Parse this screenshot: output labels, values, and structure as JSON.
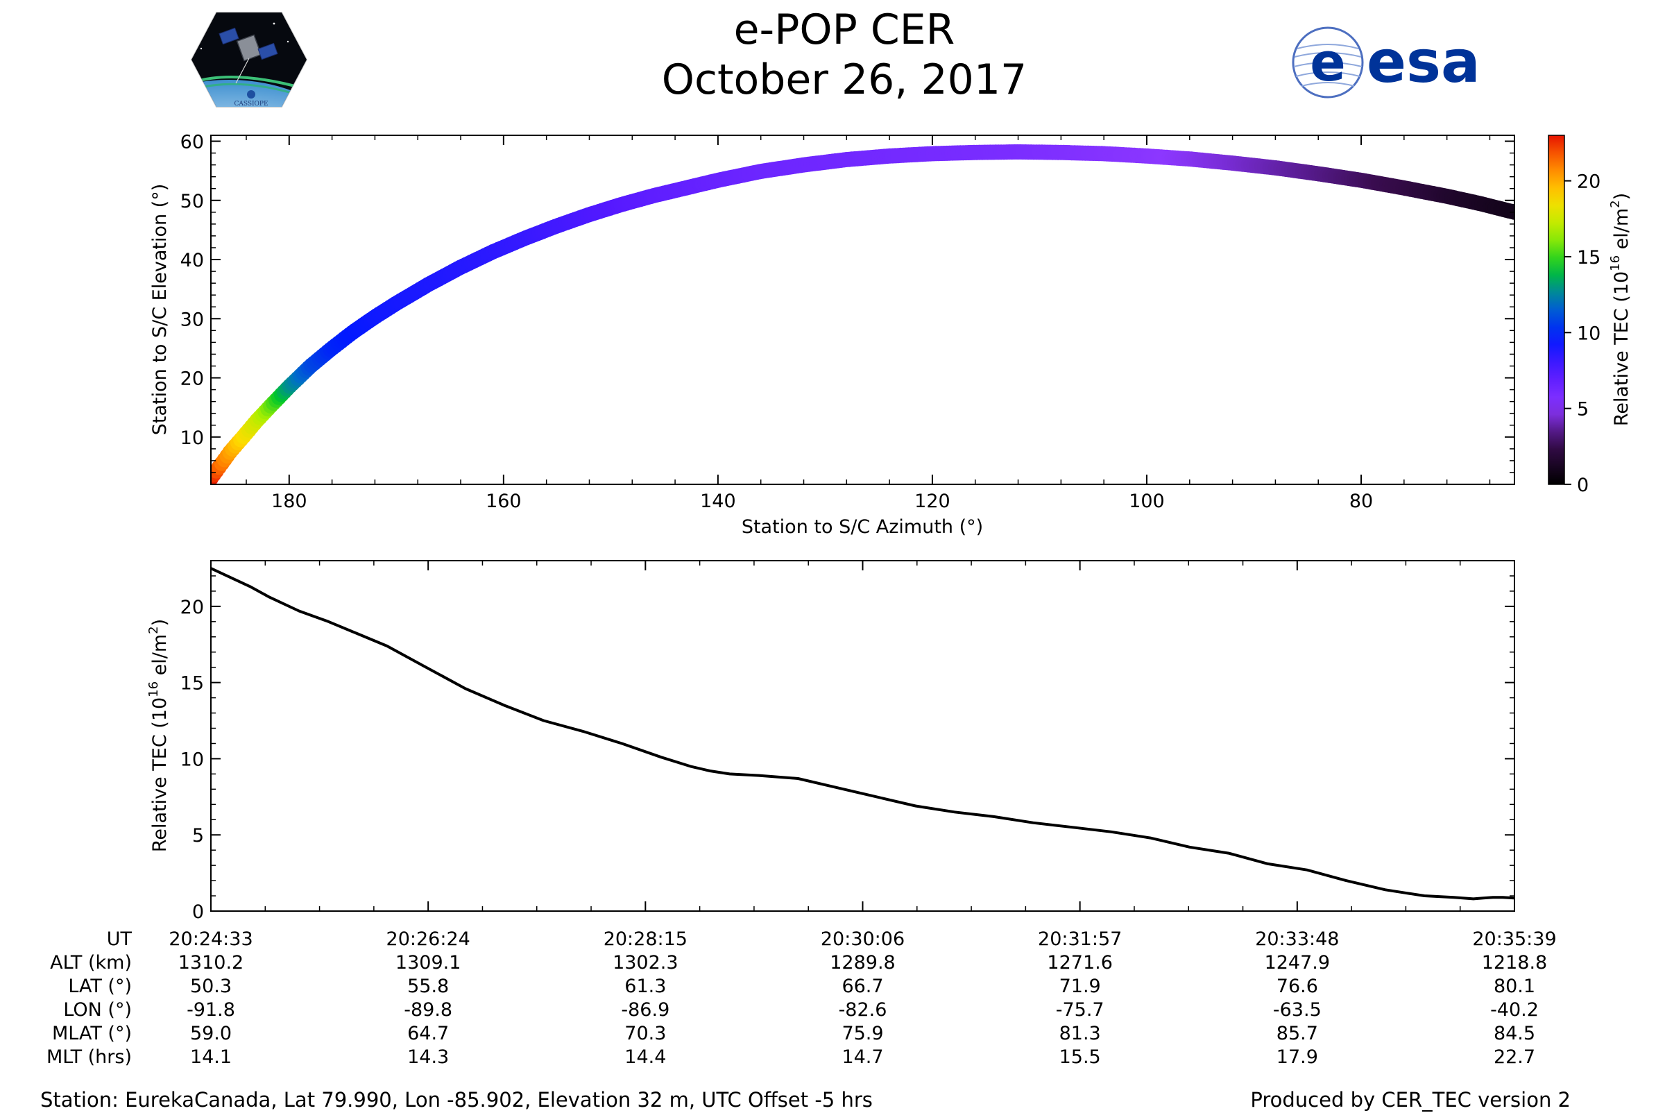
{
  "title": "e-POP CER",
  "date": "October 26, 2017",
  "logos": {
    "left": {
      "icon": "cassiope-mission-logo",
      "text": "CASSIOPE"
    },
    "right": {
      "icon": "esa-logo",
      "text": "esa",
      "color": "#003399"
    }
  },
  "chart_data": [
    {
      "type": "scatter",
      "title": "",
      "xlabel": "Station to S/C Azimuth (°)",
      "ylabel": "Station to S/C Elevation (°)",
      "xlim": [
        187.3,
        65.7
      ],
      "ylim": [
        2,
        61
      ],
      "x_reversed": true,
      "x_ticks": [
        180,
        160,
        140,
        120,
        100,
        80
      ],
      "y_ticks": [
        10,
        20,
        30,
        40,
        50,
        60
      ],
      "colorbar": {
        "label_main": "Relative TEC (10",
        "label_sup": "16",
        "label_mid": " el/m",
        "label_sup2": "2",
        "label_end": ")",
        "colormap": "gnuplot-rainbow-black-to-red",
        "range": [
          0,
          23
        ],
        "ticks": [
          0,
          5,
          10,
          15,
          20
        ]
      },
      "series": [
        {
          "x": [
            187.3,
            186.5,
            185.5,
            184.3,
            183.0,
            181.6,
            180.0,
            178.0,
            176.0,
            174.0,
            172.0,
            170.0,
            167.0,
            164.0,
            161.0,
            158.0,
            155.0,
            152.0,
            149.0,
            146.0,
            143.0,
            140.0,
            136.0,
            132.0,
            128.0,
            124.0,
            120.0,
            116.0,
            112.0,
            108.0,
            104.0,
            100.0,
            96.0,
            92.0,
            88.0,
            84.0,
            80.0,
            76.0,
            72.0,
            69.0,
            65.7
          ],
          "y": [
            3.0,
            5.0,
            7.5,
            10.0,
            12.8,
            15.5,
            18.5,
            22.0,
            25.0,
            27.8,
            30.3,
            32.6,
            35.8,
            38.7,
            41.3,
            43.6,
            45.7,
            47.6,
            49.3,
            50.8,
            52.1,
            53.4,
            54.9,
            56.0,
            56.9,
            57.5,
            57.9,
            58.1,
            58.2,
            58.1,
            57.9,
            57.5,
            57.0,
            56.3,
            55.5,
            54.5,
            53.4,
            52.1,
            50.7,
            49.5,
            48.0
          ],
          "tec": [
            22.8,
            21.5,
            20.2,
            18.8,
            17.5,
            15.5,
            13.0,
            11.0,
            10.0,
            9.6,
            9.3,
            9.1,
            8.9,
            8.7,
            8.5,
            8.2,
            7.9,
            7.6,
            7.3,
            7.0,
            6.8,
            6.6,
            6.4,
            6.3,
            6.2,
            6.1,
            6.0,
            5.9,
            5.8,
            5.6,
            5.4,
            5.2,
            4.9,
            4.5,
            4.0,
            3.5,
            3.0,
            2.4,
            1.6,
            1.2,
            0.9
          ]
        }
      ]
    },
    {
      "type": "line",
      "title": "",
      "xlabel": "",
      "ylabel_main": "Relative TEC (10",
      "ylabel_sup": "16",
      "ylabel_mid": " el/m",
      "ylabel_sup2": "2",
      "ylabel_end": ")",
      "xlim": [
        0,
        666
      ],
      "ylim": [
        0,
        23
      ],
      "y_ticks": [
        0,
        5,
        10,
        15,
        20
      ],
      "x_ticks_seconds": [
        0,
        111,
        222,
        333,
        444,
        555,
        666
      ],
      "series": [
        {
          "x": [
            0,
            10,
            20,
            30,
            45,
            60,
            75,
            90,
            110,
            130,
            150,
            170,
            190,
            210,
            230,
            245,
            255,
            265,
            280,
            300,
            320,
            340,
            360,
            380,
            400,
            420,
            440,
            460,
            470,
            480,
            500,
            520,
            540,
            560,
            580,
            600,
            610,
            620,
            635,
            645,
            650,
            655,
            660,
            666
          ],
          "y": [
            22.5,
            21.9,
            21.3,
            20.6,
            19.7,
            19.0,
            18.2,
            17.4,
            16.0,
            14.6,
            13.5,
            12.5,
            11.8,
            11.0,
            10.1,
            9.5,
            9.2,
            9.0,
            8.9,
            8.7,
            8.1,
            7.5,
            6.9,
            6.5,
            6.2,
            5.8,
            5.5,
            5.2,
            5.0,
            4.8,
            4.2,
            3.8,
            3.1,
            2.7,
            2.0,
            1.4,
            1.2,
            1.0,
            0.9,
            0.8,
            0.85,
            0.9,
            0.9,
            0.85
          ],
          "color": "#000000"
        }
      ]
    }
  ],
  "table": {
    "row_labels": [
      "UT",
      "ALT (km)",
      "LAT (°)",
      "LON (°)",
      "MLAT (°)",
      "MLT (hrs)"
    ],
    "columns": [
      [
        "20:24:33",
        "1310.2",
        "50.3",
        "-91.8",
        "59.0",
        "14.1"
      ],
      [
        "20:26:24",
        "1309.1",
        "55.8",
        "-89.8",
        "64.7",
        "14.3"
      ],
      [
        "20:28:15",
        "1302.3",
        "61.3",
        "-86.9",
        "70.3",
        "14.4"
      ],
      [
        "20:30:06",
        "1289.8",
        "66.7",
        "-82.6",
        "75.9",
        "14.7"
      ],
      [
        "20:31:57",
        "1271.6",
        "71.9",
        "-75.7",
        "81.3",
        "15.5"
      ],
      [
        "20:33:48",
        "1247.9",
        "76.6",
        "-63.5",
        "85.7",
        "17.9"
      ],
      [
        "20:35:39",
        "1218.8",
        "80.1",
        "-40.2",
        "84.5",
        "22.7"
      ]
    ]
  },
  "footer": {
    "station": "Station: EurekaCanada, Lat 79.990, Lon -85.902, Elevation 32 m, UTC Offset -5 hrs",
    "produced_by": "Produced by CER_TEC version 2"
  }
}
